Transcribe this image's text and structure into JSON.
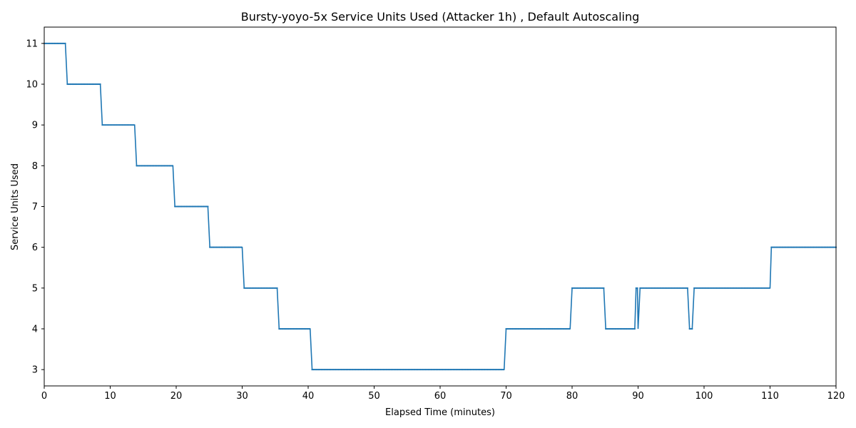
{
  "chart_data": {
    "type": "line",
    "title": "Bursty-yoyo-5x Service Units Used (Attacker 1h) , Default Autoscaling",
    "xlabel": "Elapsed Time (minutes)",
    "ylabel": "Service Units Used",
    "xlim": [
      0,
      120
    ],
    "ylim": [
      2.6,
      11.4
    ],
    "x_ticks": [
      0,
      10,
      20,
      30,
      40,
      50,
      60,
      70,
      80,
      90,
      100,
      110,
      120
    ],
    "y_ticks": [
      3,
      4,
      5,
      6,
      7,
      8,
      9,
      10,
      11
    ],
    "grid": false,
    "legend": "none",
    "color": "#1f77b4",
    "series": [
      {
        "x": [
          0,
          3.2,
          3.5,
          8.5,
          8.8,
          13.7,
          14.0,
          19.5,
          19.8,
          24.8,
          25.1,
          30.0,
          30.3,
          35.3,
          35.6,
          40.3,
          40.6,
          69.7,
          70.0,
          79.7,
          80.0,
          84.8,
          85.1,
          89.5,
          89.7,
          89.9,
          90.0,
          90.3,
          97.5,
          97.8,
          98.2,
          98.5,
          110.0,
          110.2,
          120
        ],
        "y": [
          11,
          11,
          10,
          10,
          9,
          9,
          8,
          8,
          7,
          7,
          6,
          6,
          5,
          5,
          4,
          4,
          3,
          3,
          4,
          4,
          5,
          5,
          4,
          4,
          5,
          5,
          4,
          5,
          5,
          4,
          4,
          5,
          5,
          6,
          6
        ]
      }
    ]
  }
}
